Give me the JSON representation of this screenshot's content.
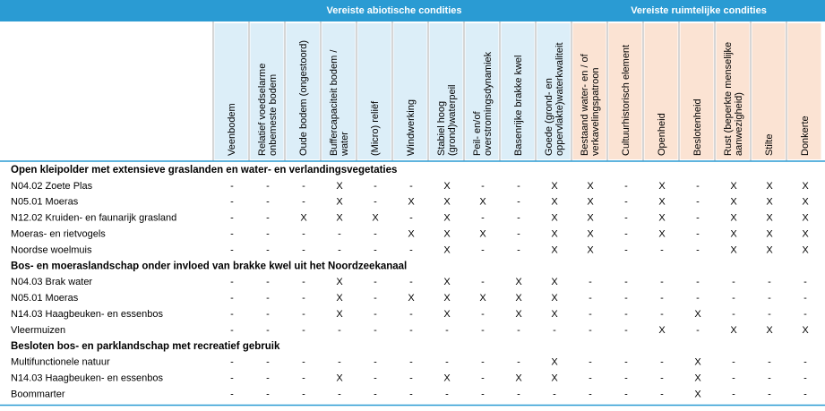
{
  "header": {
    "groups": [
      "Vereiste abiotische condities",
      "Vereiste ruimtelijke condities"
    ],
    "columns": [
      [
        "Veenbodem"
      ],
      [
        "Relatief voedselarme",
        "onbemeste bodem"
      ],
      [
        "Oude bodem (ongestoord)"
      ],
      [
        "Buffercapaciteit bodem /",
        "water"
      ],
      [
        "(Micro) reliëf"
      ],
      [
        "Windwerking"
      ],
      [
        "Stabiel hoog",
        "(grond)waterpeil"
      ],
      [
        "Peil- en/of",
        "overstromingsdynamiek"
      ],
      [
        "Basenrijke brakke kwel"
      ],
      [
        "Goede (grond- en",
        "oppervlakte)waterkwaliteit"
      ],
      [
        "Bestaand water- en / of",
        "verkavelingspatroon"
      ],
      [
        "Cultuurhistorisch element"
      ],
      [
        "Openheid"
      ],
      [
        "Beslotenheid"
      ],
      [
        "Rust (beperkte menselijke",
        "aanwezigheid)"
      ],
      [
        "Stilte"
      ],
      [
        "Donkerte"
      ]
    ]
  },
  "sections": [
    {
      "title": "Open kleipolder met extensieve graslanden en water- en verlandingsvegetaties",
      "rows": [
        {
          "name": "N04.02 Zoete Plas",
          "cells": [
            "-",
            "-",
            "-",
            "X",
            "-",
            "-",
            "X",
            "-",
            "-",
            "X",
            "X",
            "-",
            "X",
            "-",
            "X",
            "X",
            "X"
          ]
        },
        {
          "name": "N05.01 Moeras",
          "cells": [
            "-",
            "-",
            "-",
            "X",
            "-",
            "X",
            "X",
            "X",
            "-",
            "X",
            "X",
            "-",
            "X",
            "-",
            "X",
            "X",
            "X"
          ]
        },
        {
          "name": "N12.02 Kruiden- en faunarijk grasland",
          "cells": [
            "-",
            "-",
            "X",
            "X",
            "X",
            "-",
            "X",
            "-",
            "-",
            "X",
            "X",
            "-",
            "X",
            "-",
            "X",
            "X",
            "X"
          ]
        },
        {
          "name": "Moeras- en rietvogels",
          "cells": [
            "-",
            "-",
            "-",
            "-",
            "-",
            "X",
            "X",
            "X",
            "-",
            "X",
            "X",
            "-",
            "X",
            "-",
            "X",
            "X",
            "X"
          ]
        },
        {
          "name": "Noordse woelmuis",
          "cells": [
            "-",
            "-",
            "-",
            "-",
            "-",
            "-",
            "X",
            "-",
            "-",
            "X",
            "X",
            "-",
            "-",
            "-",
            "X",
            "X",
            "X"
          ]
        }
      ]
    },
    {
      "title": "Bos- en moeraslandschap onder invloed van brakke kwel uit het Noordzeekanaal",
      "rows": [
        {
          "name": "N04.03 Brak water",
          "cells": [
            "-",
            "-",
            "-",
            "X",
            "-",
            "-",
            "X",
            "-",
            "X",
            "X",
            "-",
            "-",
            "-",
            "-",
            "-",
            "-",
            "-"
          ]
        },
        {
          "name": "N05.01 Moeras",
          "cells": [
            "-",
            "-",
            "-",
            "X",
            "-",
            "X",
            "X",
            "X",
            "X",
            "X",
            "-",
            "-",
            "-",
            "-",
            "-",
            "-",
            "-"
          ]
        },
        {
          "name": "N14.03 Haagbeuken- en essenbos",
          "cells": [
            "-",
            "-",
            "-",
            "X",
            "-",
            "-",
            "X",
            "-",
            "X",
            "X",
            "-",
            "-",
            "-",
            "X",
            "-",
            "-",
            "-"
          ]
        },
        {
          "name": "Vleermuizen",
          "cells": [
            "-",
            "-",
            "-",
            "-",
            "-",
            "-",
            "-",
            "-",
            "-",
            "-",
            "-",
            "-",
            "X",
            "-",
            "X",
            "X",
            "X"
          ]
        }
      ]
    },
    {
      "title": "Besloten bos- en parklandschap met recreatief gebruik",
      "rows": [
        {
          "name": "Multifunctionele natuur",
          "cells": [
            "-",
            "-",
            "-",
            "-",
            "-",
            "-",
            "-",
            "-",
            "-",
            "X",
            "-",
            "-",
            "-",
            "X",
            "-",
            "-",
            "-"
          ]
        },
        {
          "name": "N14.03 Haagbeuken- en essenbos",
          "cells": [
            "-",
            "-",
            "-",
            "X",
            "-",
            "-",
            "X",
            "-",
            "X",
            "X",
            "-",
            "-",
            "-",
            "X",
            "-",
            "-",
            "-"
          ]
        },
        {
          "name": "Boommarter",
          "cells": [
            "-",
            "-",
            "-",
            "-",
            "-",
            "-",
            "-",
            "-",
            "-",
            "-",
            "-",
            "-",
            "-",
            "X",
            "-",
            "-",
            "-"
          ]
        }
      ]
    }
  ]
}
